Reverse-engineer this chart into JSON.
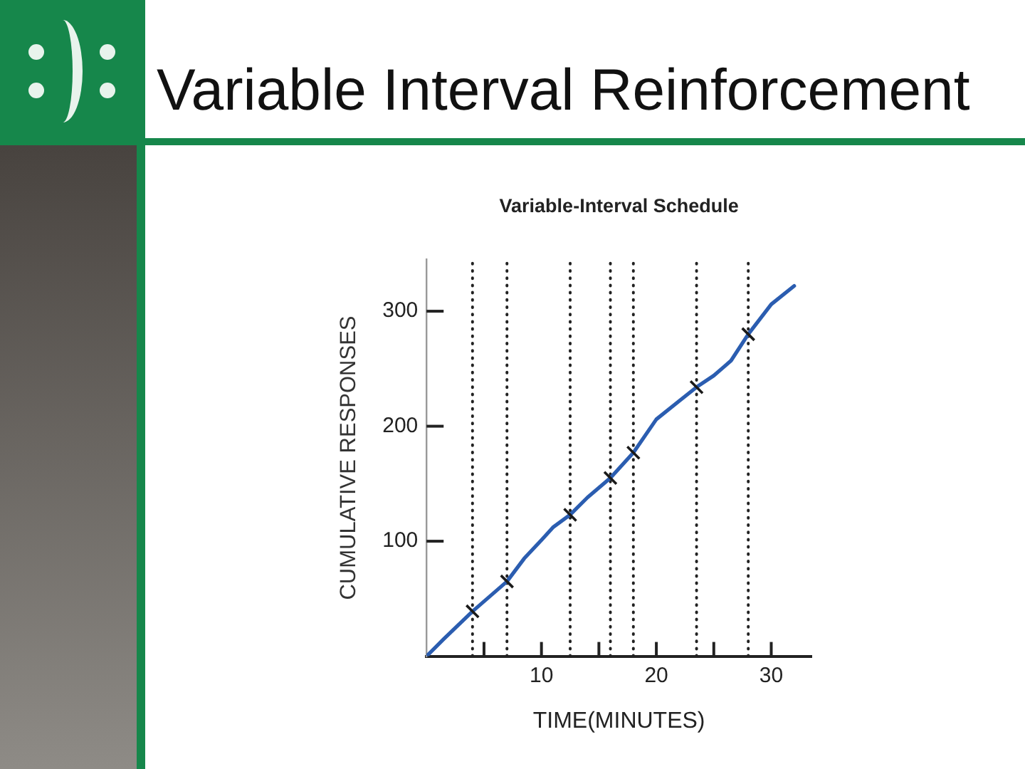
{
  "chart_data": {
    "type": "line",
    "title": "Variable Interval Reinforcement",
    "subtitle": "Variable-Interval Schedule",
    "xlabel": "TIME(MINUTES)",
    "ylabel": "CUMULATIVE RESPONSES",
    "xlim": [
      0,
      33.5
    ],
    "xticks": [
      {
        "value": 5,
        "label": null
      },
      10,
      {
        "value": 15,
        "label": null
      },
      20,
      {
        "value": 25,
        "label": null
      },
      30
    ],
    "ylim": [
      0,
      345
    ],
    "yticks": [
      100,
      200,
      300
    ],
    "series": [
      {
        "color": "#2b5db0",
        "x": [
          0,
          1.5,
          4,
          5.5,
          7,
          8.5,
          10,
          11,
          12.5,
          14,
          16,
          18,
          20,
          22,
          23.5,
          25,
          26.5,
          28,
          30,
          32
        ],
        "values": [
          0,
          15,
          39,
          52,
          65,
          85,
          101,
          112,
          123,
          138,
          155,
          177,
          206,
          222,
          234,
          244,
          257,
          280,
          306,
          322
        ]
      },
      {
        "type": "scatter",
        "color": "#1a1a1a",
        "marker": "cross",
        "x": [
          4,
          7,
          12.5,
          16,
          18,
          23.5,
          28
        ],
        "values": [
          39,
          65,
          123,
          155,
          177,
          234,
          280
        ]
      }
    ],
    "ref_lines": [
      {
        "axis": "x",
        "value": 4,
        "line_style": "dotted",
        "color": "#222222"
      },
      {
        "axis": "x",
        "value": 7,
        "line_style": "dotted",
        "color": "#222222"
      },
      {
        "axis": "x",
        "value": 12.5,
        "line_style": "dotted",
        "color": "#222222"
      },
      {
        "axis": "x",
        "value": 16,
        "line_style": "dotted",
        "color": "#222222"
      },
      {
        "axis": "x",
        "value": 18,
        "line_style": "dotted",
        "color": "#222222"
      },
      {
        "axis": "x",
        "value": 23.5,
        "line_style": "dotted",
        "color": "#222222"
      },
      {
        "axis": "x",
        "value": 28,
        "line_style": "dotted",
        "color": "#222222"
      }
    ],
    "grid": false,
    "legend": false
  }
}
